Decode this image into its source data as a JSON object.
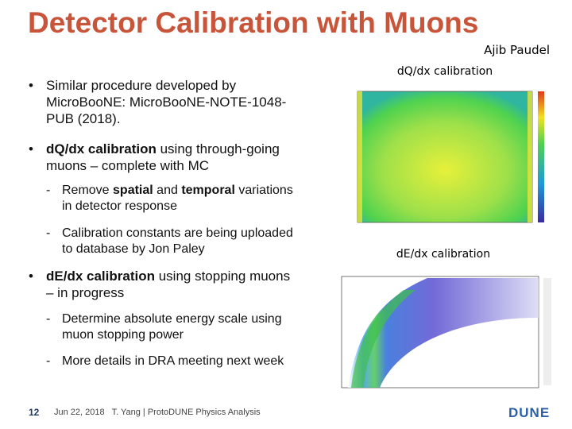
{
  "header": {
    "title": "Detector Calibration with Muons",
    "author": "Ajib Paudel"
  },
  "bullets": [
    {
      "level": 1,
      "runs": [
        {
          "text": "Similar procedure developed by MicroBooNE: MicroBooNE-NOTE-1048-PUB (2018)."
        }
      ]
    },
    {
      "level": 1,
      "runs": [
        {
          "text": "dQ/dx calibration",
          "bold": true
        },
        {
          "text": " using through-going muons – complete with MC"
        }
      ]
    },
    {
      "level": 2,
      "runs": [
        {
          "text": "Remove "
        },
        {
          "text": "spatial",
          "bold": true
        },
        {
          "text": " and "
        },
        {
          "text": "temporal",
          "bold": true
        },
        {
          "text": " variations in detector response"
        }
      ]
    },
    {
      "level": 2,
      "runs": [
        {
          "text": "Calibration constants are being uploaded to database by Jon Paley"
        }
      ]
    },
    {
      "level": 1,
      "runs": [
        {
          "text": "dE/dx calibration",
          "bold": true
        },
        {
          "text": " using stopping muons – in progress"
        }
      ]
    },
    {
      "level": 2,
      "runs": [
        {
          "text": "Determine absolute energy scale using muon stopping power"
        }
      ]
    },
    {
      "level": 2,
      "runs": [
        {
          "text": "More details in DRA meeting next week"
        }
      ]
    }
  ],
  "figures": [
    {
      "caption": "dQ/dx calibration"
    },
    {
      "caption": "dE/dx calibration"
    }
  ],
  "footer": {
    "page": "12",
    "text": "Jun 22, 2018   T. Yang | ProtoDUNE Physics Analysis",
    "logo": "DUNE"
  }
}
